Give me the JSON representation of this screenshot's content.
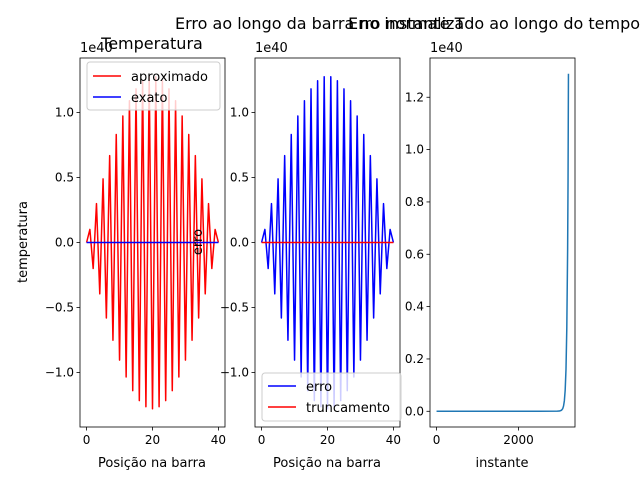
{
  "chart_data": [
    {
      "type": "line",
      "title": "Temperatura",
      "xlabel": "Posição na barra",
      "ylabel": "temperatura",
      "offset_label": "1e40",
      "x_ticks": [
        0,
        20,
        40
      ],
      "y_ticks": [
        -1.0,
        -0.5,
        0.0,
        0.5,
        1.0
      ],
      "y_tick_labels": [
        "−1.0",
        "−0.5",
        "0.0",
        "0.5",
        "1.0"
      ],
      "xlim": [
        -2,
        42
      ],
      "ylim": [
        -1.42,
        1.42
      ],
      "grid": false,
      "legend_placement": "upper-left",
      "series": [
        {
          "name": "aproximado",
          "color": "#ff0000",
          "x_range": [
            0,
            40
          ],
          "n_points": 41,
          "pattern": "alternating-sign",
          "envelope_peak_x": 20,
          "envelope_peak_value": 1.28
        },
        {
          "name": "exato",
          "color": "#0000ff",
          "x": [
            0,
            40
          ],
          "values": [
            0,
            0
          ]
        }
      ]
    },
    {
      "type": "line",
      "title": "Erro ao longo da barra no instante T",
      "xlabel": "Posição na barra",
      "ylabel": "erro",
      "offset_label": "1e40",
      "x_ticks": [
        0,
        20,
        40
      ],
      "y_ticks": [
        -1.0,
        -0.5,
        0.0,
        0.5,
        1.0
      ],
      "y_tick_labels": [
        "−1.0",
        "−0.5",
        "0.0",
        "0.5",
        "1.0"
      ],
      "xlim": [
        -2,
        42
      ],
      "ylim": [
        -1.42,
        1.42
      ],
      "grid": false,
      "legend_placement": "lower-left",
      "series": [
        {
          "name": "erro",
          "color": "#0000ff",
          "x_range": [
            0,
            40
          ],
          "n_points": 41,
          "pattern": "alternating-sign",
          "envelope_peak_x": 20,
          "envelope_peak_value": 1.28
        },
        {
          "name": "truncamento",
          "color": "#ff0000",
          "x": [
            0,
            40
          ],
          "values": [
            0,
            0
          ]
        }
      ]
    },
    {
      "type": "line",
      "title": "Erro normalizado ao longo do tempo",
      "xlabel": "instante",
      "ylabel": "",
      "offset_label": "1e40",
      "x_ticks": [
        0,
        2000
      ],
      "y_ticks": [
        0.0,
        0.2,
        0.4,
        0.6,
        0.8,
        1.0,
        1.2
      ],
      "y_tick_labels": [
        "0.0",
        "0.2",
        "0.4",
        "0.6",
        "0.8",
        "1.0",
        "1.2"
      ],
      "xlim": [
        -160,
        3380
      ],
      "ylim": [
        -0.06,
        1.35
      ],
      "grid": false,
      "series": [
        {
          "name": "",
          "color": "#1f77b4",
          "x": [
            0,
            2500,
            2950,
            3000,
            3050,
            3080,
            3100,
            3120,
            3140,
            3160,
            3180,
            3200,
            3210,
            3220
          ],
          "values": [
            0,
            0,
            0.0005,
            0.001,
            0.004,
            0.01,
            0.02,
            0.04,
            0.08,
            0.16,
            0.32,
            0.62,
            0.88,
            1.29
          ]
        }
      ]
    }
  ]
}
